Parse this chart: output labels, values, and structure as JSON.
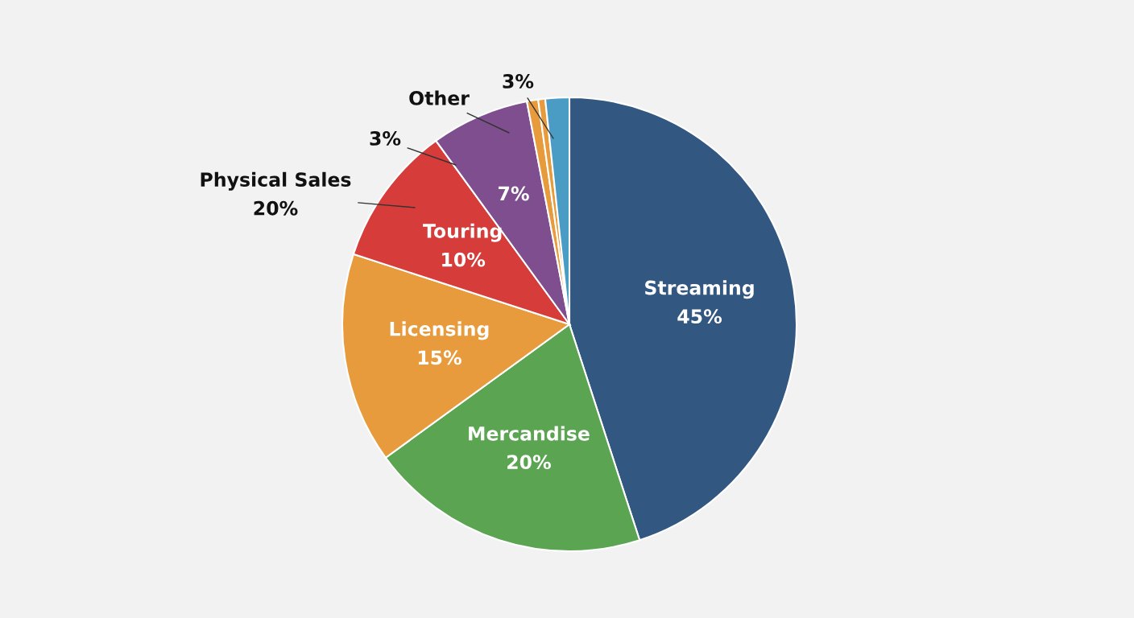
{
  "chart_data": {
    "type": "pie",
    "categories": [
      "Streaming",
      "Mercandise",
      "Licensing",
      "Touring",
      null,
      null,
      null,
      null
    ],
    "values": [
      45,
      20,
      15,
      10,
      7,
      0.8,
      0.5,
      1.7
    ],
    "colors": [
      "#325780",
      "#5ba552",
      "#e89b3c",
      "#d63c3a",
      "#7e4e8f",
      "#e89b3c",
      "#e89b3c",
      "#4a9cc4"
    ],
    "value_labels": [
      "45%",
      "20%",
      "15%",
      "10%",
      "7%",
      null,
      null,
      null
    ],
    "annotations": [
      "3%",
      "Other",
      "3%",
      "Physical Sales\n20%"
    ]
  }
}
